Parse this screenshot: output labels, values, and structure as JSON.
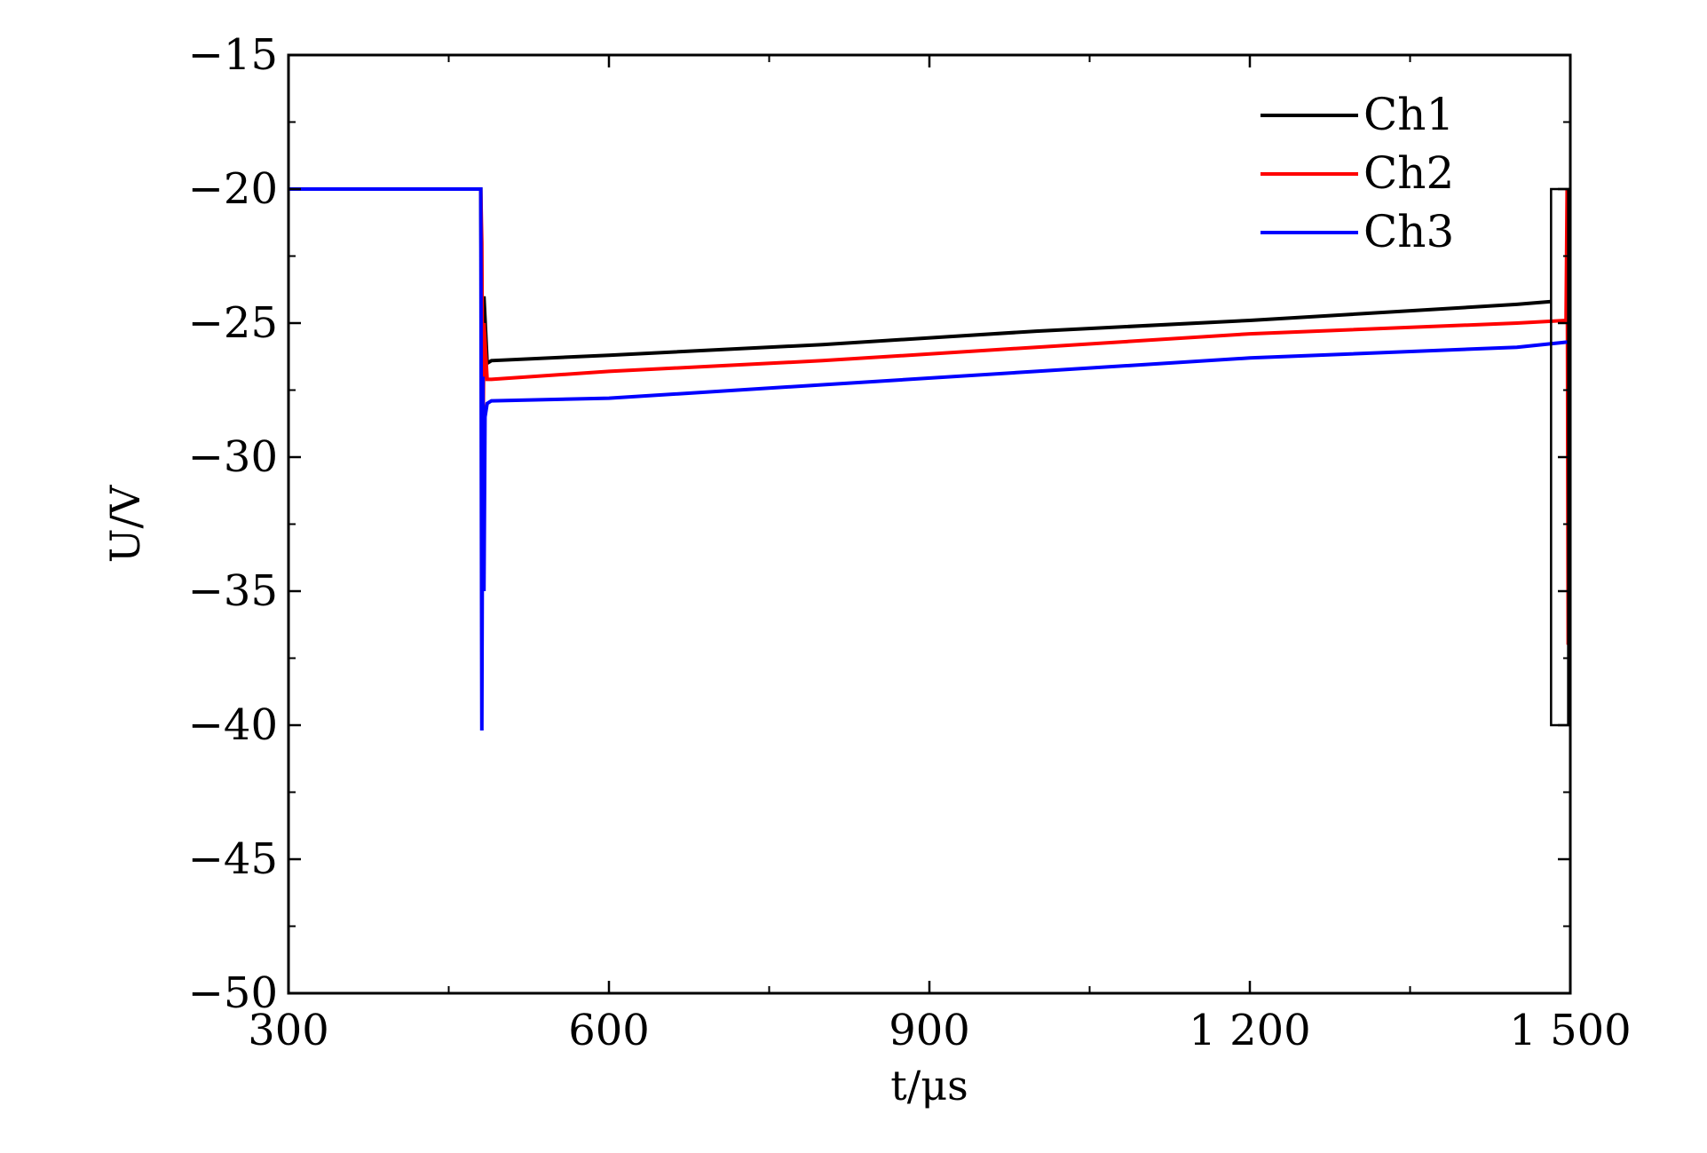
{
  "chart_data": {
    "type": "line",
    "title": "",
    "xlabel": "t/μs",
    "ylabel": "U/V",
    "xlim": [
      300,
      1500
    ],
    "ylim": [
      -50,
      -15
    ],
    "x_ticks": [
      300,
      600,
      900,
      1200,
      1500
    ],
    "x_tick_labels": [
      "300",
      "600",
      "900",
      "1 200",
      "1 500"
    ],
    "y_ticks": [
      -15,
      -20,
      -25,
      -30,
      -35,
      -40,
      -45,
      -50
    ],
    "y_tick_labels": [
      "−15",
      "−20",
      "−25",
      "−30",
      "−35",
      "−40",
      "−45",
      "−50"
    ],
    "grid": false,
    "legend_position": "top-right",
    "series": [
      {
        "name": "Ch1",
        "color": "#000000",
        "points": [
          [
            300,
            -20
          ],
          [
            480,
            -20
          ],
          [
            481,
            -27
          ],
          [
            483,
            -24
          ],
          [
            486,
            -26.5
          ],
          [
            490,
            -26.4
          ],
          [
            600,
            -26.2
          ],
          [
            800,
            -25.8
          ],
          [
            1000,
            -25.3
          ],
          [
            1200,
            -24.9
          ],
          [
            1450,
            -24.3
          ],
          [
            1482,
            -24.2
          ]
        ]
      },
      {
        "name": "Ch2",
        "color": "#ff0000",
        "points": [
          [
            300,
            -20
          ],
          [
            480,
            -20
          ],
          [
            481,
            -22
          ],
          [
            482,
            -30
          ],
          [
            483,
            -25
          ],
          [
            486,
            -27.1
          ],
          [
            490,
            -27.1
          ],
          [
            600,
            -26.8
          ],
          [
            800,
            -26.4
          ],
          [
            1000,
            -25.9
          ],
          [
            1200,
            -25.4
          ],
          [
            1450,
            -25
          ],
          [
            1496,
            -24.9
          ],
          [
            1497,
            -20
          ],
          [
            1498,
            -37
          ],
          [
            1499,
            -25
          ]
        ]
      },
      {
        "name": "Ch3",
        "color": "#0000ff",
        "points": [
          [
            300,
            -20
          ],
          [
            480,
            -20
          ],
          [
            481,
            -40.2
          ],
          [
            482,
            -27
          ],
          [
            483,
            -35
          ],
          [
            484,
            -28.5
          ],
          [
            486,
            -28
          ],
          [
            490,
            -27.9
          ],
          [
            600,
            -27.8
          ],
          [
            800,
            -27.3
          ],
          [
            1000,
            -26.8
          ],
          [
            1200,
            -26.3
          ],
          [
            1450,
            -25.9
          ],
          [
            1499,
            -25.7
          ]
        ]
      }
    ],
    "annotations": [
      {
        "type": "rectangle",
        "x_range": [
          1482,
          1498
        ],
        "y_range": [
          -40,
          -20
        ]
      }
    ]
  }
}
